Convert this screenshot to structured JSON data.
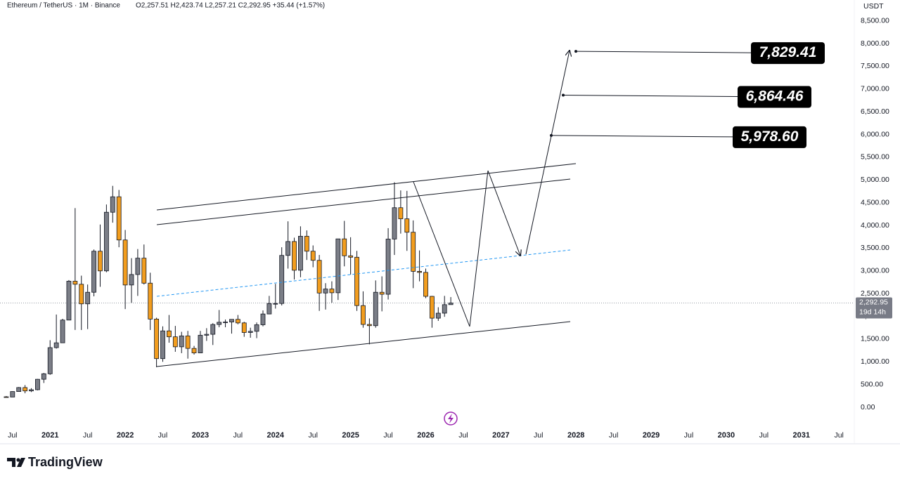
{
  "chart_data": {
    "type": "candlestick",
    "title": "Ethereum / TetherUS · 1M · Binance",
    "ohlc_text": "O2,257.51  H2,423.74  L2,257.21  C2,292.95  +35.44 (+1.57%)",
    "axis_unit": "USDT",
    "up_color": "#7b7e87",
    "down_color": "#f29d1e",
    "x": [
      "2020-06",
      "2020-07",
      "2020-08",
      "2020-09",
      "2020-10",
      "2020-11",
      "2020-12",
      "2021-01",
      "2021-02",
      "2021-03",
      "2021-04",
      "2021-05",
      "2021-06",
      "2021-07",
      "2021-08",
      "2021-09",
      "2021-10",
      "2021-11",
      "2021-12",
      "2022-01",
      "2022-02",
      "2022-03",
      "2022-04",
      "2022-05",
      "2022-06",
      "2022-07",
      "2022-08",
      "2022-09",
      "2022-10",
      "2022-11",
      "2022-12",
      "2023-01",
      "2023-02",
      "2023-03",
      "2023-04",
      "2023-05",
      "2023-06",
      "2023-07",
      "2023-08",
      "2023-09",
      "2023-10",
      "2023-11",
      "2023-12",
      "2024-01",
      "2024-02",
      "2024-03",
      "2024-04",
      "2024-05",
      "2024-06",
      "2024-07",
      "2024-08",
      "2024-09",
      "2024-10",
      "2024-11",
      "2024-12",
      "2025-01",
      "2025-02",
      "2025-03",
      "2025-04",
      "2025-05",
      "2025-06",
      "2025-07",
      "2025-08",
      "2025-09",
      "2025-10",
      "2025-11",
      "2025-12",
      "2026-01",
      "2026-02",
      "2026-03",
      "2026-04",
      "2026-05"
    ],
    "open": [
      231,
      225,
      346,
      434,
      360,
      386,
      616,
      737,
      1312,
      1418,
      1918,
      2773,
      2706,
      2275,
      2530,
      3433,
      3000,
      4290,
      4630,
      3680,
      2690,
      2920,
      3280,
      2730,
      1940,
      1070,
      1680,
      1550,
      1330,
      1570,
      1295,
      1196,
      1585,
      1605,
      1821,
      1870,
      1875,
      1934,
      1856,
      1645,
      1671,
      1815,
      2052,
      2282,
      2283,
      3340,
      3646,
      3014,
      3762,
      3433,
      3232,
      2513,
      2602,
      2519,
      3704,
      3332,
      3300,
      2237,
      1822,
      1795,
      2530,
      2486,
      3700,
      4390,
      4145,
      3850,
      2990,
      2967,
      2440,
      1960,
      2070,
      2257.51
    ],
    "high": [
      247,
      350,
      445,
      488,
      420,
      623,
      755,
      1475,
      2040,
      1946,
      2798,
      4380,
      2895,
      2700,
      3470,
      4020,
      4460,
      4870,
      4780,
      3900,
      3280,
      3480,
      3580,
      2960,
      1970,
      1780,
      2030,
      1790,
      1660,
      1680,
      1350,
      1680,
      1740,
      1850,
      2140,
      1930,
      1930,
      2030,
      1880,
      1750,
      1865,
      2130,
      2450,
      2715,
      3520,
      4090,
      3730,
      3980,
      3890,
      3560,
      3350,
      2730,
      2770,
      3680,
      4100,
      3740,
      3440,
      2550,
      1955,
      2790,
      2880,
      3940,
      4950,
      4770,
      4760,
      4110,
      3450,
      3050,
      2450,
      2200,
      2450,
      2423.74
    ],
    "low": [
      216,
      225,
      345,
      308,
      335,
      373,
      534,
      714,
      1290,
      1432,
      1920,
      1700,
      1700,
      1720,
      2440,
      2650,
      2970,
      4060,
      3520,
      2160,
      2300,
      2450,
      2700,
      1700,
      880,
      1000,
      1420,
      1220,
      1190,
      1070,
      1160,
      1190,
      1460,
      1370,
      1760,
      1760,
      1620,
      1825,
      1550,
      1530,
      1520,
      1780,
      2050,
      2170,
      2240,
      3050,
      2810,
      2860,
      3240,
      3080,
      2120,
      2150,
      2300,
      2360,
      3100,
      2920,
      2120,
      1750,
      1385,
      1750,
      2110,
      2370,
      3350,
      3820,
      3440,
      2620,
      2770,
      2400,
      1750,
      1900,
      1990,
      2257.21
    ],
    "close": [
      225,
      346,
      434,
      360,
      386,
      616,
      737,
      1312,
      1418,
      1918,
      2773,
      2706,
      2275,
      2530,
      3433,
      3000,
      4290,
      4630,
      3680,
      2690,
      2920,
      3280,
      2730,
      1940,
      1070,
      1680,
      1550,
      1330,
      1570,
      1295,
      1196,
      1585,
      1605,
      1821,
      1870,
      1875,
      1934,
      1856,
      1645,
      1671,
      1815,
      2052,
      2282,
      2283,
      3340,
      3646,
      3014,
      3762,
      3433,
      3232,
      2513,
      2602,
      2519,
      3704,
      3332,
      3300,
      2237,
      1822,
      1795,
      2530,
      2486,
      3700,
      4390,
      4145,
      3850,
      2990,
      2967,
      2440,
      1960,
      2070,
      2257.51,
      2292.95
    ],
    "xlim": [
      "2020-05",
      "2031-09"
    ],
    "xticks": [
      {
        "value": "2020-07",
        "label": "Jul"
      },
      {
        "value": "2021-01",
        "label": "2021"
      },
      {
        "value": "2021-07",
        "label": "Jul"
      },
      {
        "value": "2022-01",
        "label": "2022"
      },
      {
        "value": "2022-07",
        "label": "Jul"
      },
      {
        "value": "2023-01",
        "label": "2023"
      },
      {
        "value": "2023-07",
        "label": "Jul"
      },
      {
        "value": "2024-01",
        "label": "2024"
      },
      {
        "value": "2024-07",
        "label": "Jul"
      },
      {
        "value": "2025-01",
        "label": "2025"
      },
      {
        "value": "2025-07",
        "label": "Jul"
      },
      {
        "value": "2026-01",
        "label": "2026"
      },
      {
        "value": "2026-07",
        "label": "Jul"
      },
      {
        "value": "2027-01",
        "label": "2027"
      },
      {
        "value": "2027-07",
        "label": "Jul"
      },
      {
        "value": "2028-01",
        "label": "2028"
      },
      {
        "value": "2028-07",
        "label": "Jul"
      },
      {
        "value": "2029-01",
        "label": "2029"
      },
      {
        "value": "2029-07",
        "label": "Jul"
      },
      {
        "value": "2030-01",
        "label": "2030"
      },
      {
        "value": "2030-07",
        "label": "Jul"
      },
      {
        "value": "2031-01",
        "label": "2031"
      },
      {
        "value": "2031-07",
        "label": "Jul"
      }
    ],
    "ylim": [
      -386,
      8958
    ],
    "yticks": [
      {
        "value": 0,
        "label": "0.00"
      },
      {
        "value": 500,
        "label": "500.00"
      },
      {
        "value": 1000,
        "label": "1,000.00"
      },
      {
        "value": 1500,
        "label": "1,500.00"
      },
      {
        "value": 2000,
        "label": "2,000.00"
      },
      {
        "value": 2500,
        "label": "2,500.00"
      },
      {
        "value": 3000,
        "label": "3,000.00"
      },
      {
        "value": 3500,
        "label": "3,500.00"
      },
      {
        "value": 4000,
        "label": "4,000.00"
      },
      {
        "value": 4500,
        "label": "4,500.00"
      },
      {
        "value": 5000,
        "label": "5,000.00"
      },
      {
        "value": 5500,
        "label": "5,500.00"
      },
      {
        "value": 6000,
        "label": "6,000.00"
      },
      {
        "value": 6500,
        "label": "6,500.00"
      },
      {
        "value": 7000,
        "label": "7,000.00"
      },
      {
        "value": 7500,
        "label": "7,500.00"
      },
      {
        "value": 8000,
        "label": "8,000.00"
      },
      {
        "value": 8500,
        "label": "8,500.00"
      }
    ],
    "last_price": {
      "value": 2292.95,
      "label": "2,292.95"
    },
    "countdown": "19d 14h",
    "targets": [
      {
        "value": 5978.6,
        "label": "5,978.60"
      },
      {
        "value": 6864.46,
        "label": "6,864.46"
      },
      {
        "value": 7829.41,
        "label": "7,829.41"
      }
    ],
    "brand": "TradingView"
  }
}
